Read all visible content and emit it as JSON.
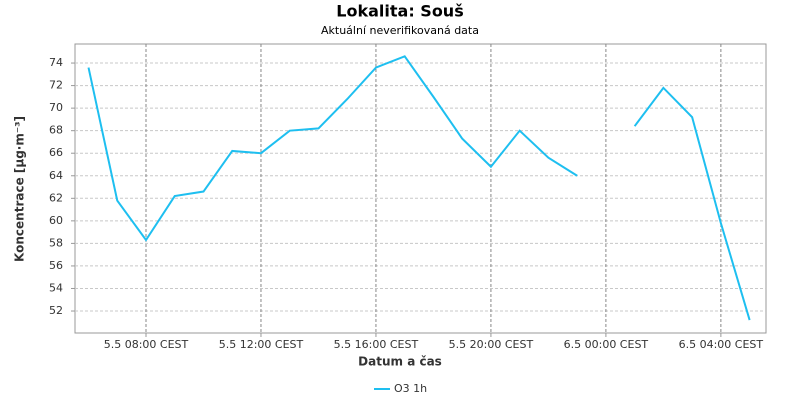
{
  "chart_data": {
    "type": "line",
    "title": "Lokalita: Souš",
    "subtitle": "Aktuální neverifikovaná data",
    "x_label": "Datum a čas",
    "y_label": "Koncentrace [µg·m⁻³]",
    "x": [
      6,
      7,
      8,
      9,
      10,
      11,
      12,
      13,
      14,
      15,
      16,
      17,
      18,
      19,
      20,
      21,
      22,
      23,
      24,
      25,
      26,
      27,
      28,
      29
    ],
    "series": [
      {
        "name": "O3 1h",
        "color": "#1ebff0",
        "values": [
          73.6,
          61.8,
          58.3,
          62.2,
          62.6,
          66.2,
          66.0,
          68.0,
          68.2,
          70.8,
          73.6,
          74.6,
          71.0,
          67.3,
          64.8,
          68.0,
          65.6,
          64.0,
          null,
          68.4,
          71.8,
          69.2,
          59.8,
          51.2
        ]
      }
    ],
    "xlim": [
      5.53,
      29.57
    ],
    "xticks": [
      {
        "value": 8,
        "label": "5.5 08:00 CEST"
      },
      {
        "value": 12,
        "label": "5.5 12:00 CEST"
      },
      {
        "value": 16,
        "label": "5.5 16:00 CEST"
      },
      {
        "value": 20,
        "label": "5.5 20:00 CEST"
      },
      {
        "value": 24,
        "label": "6.5 00:00 CEST"
      },
      {
        "value": 28,
        "label": "6.5 04:00 CEST"
      }
    ],
    "ylim": [
      50.05,
      75.69
    ],
    "yticks": [
      52,
      54,
      56,
      58,
      60,
      62,
      64,
      66,
      68,
      70,
      72,
      74
    ],
    "grid": true,
    "legend": "bottom"
  }
}
